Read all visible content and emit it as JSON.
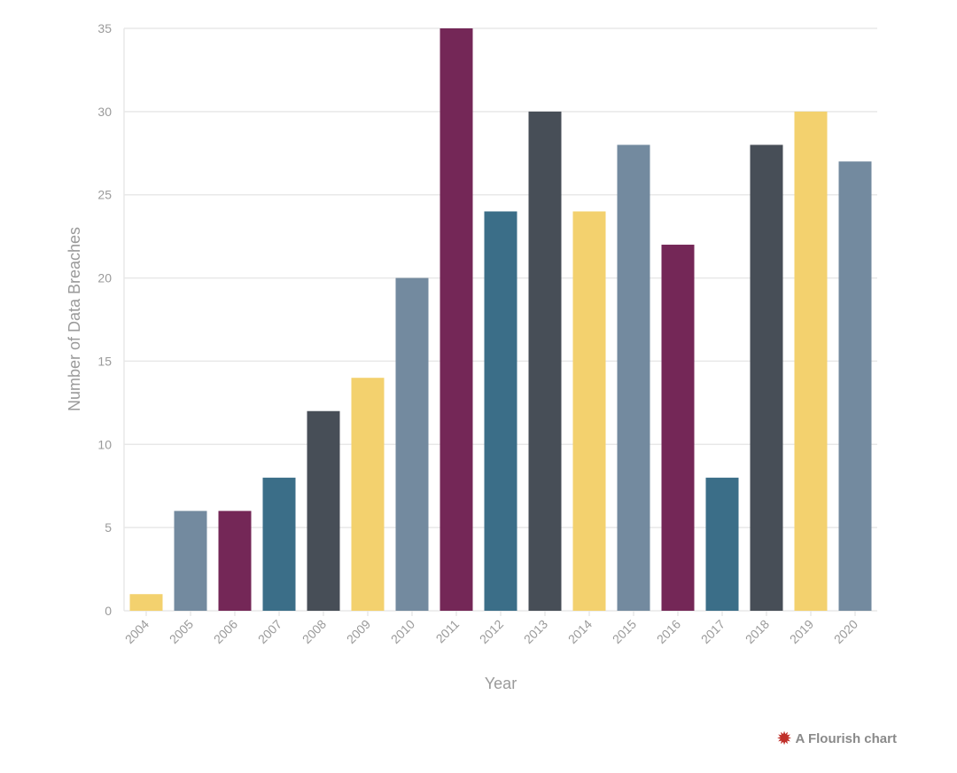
{
  "chart_data": {
    "type": "bar",
    "title": "",
    "xlabel": "Year",
    "ylabel": "Number of Data Breaches",
    "categories": [
      "2004",
      "2005",
      "2006",
      "2007",
      "2008",
      "2009",
      "2010",
      "2011",
      "2012",
      "2013",
      "2014",
      "2015",
      "2016",
      "2017",
      "2018",
      "2019",
      "2020"
    ],
    "values": [
      1,
      6,
      6,
      8,
      12,
      14,
      20,
      35,
      24,
      30,
      24,
      28,
      22,
      8,
      28,
      30,
      27
    ],
    "colors": [
      "#f3d16e",
      "#738a9f",
      "#742757",
      "#3b6e88",
      "#474e57",
      "#f3d16e",
      "#738a9f",
      "#742757",
      "#3b6e88",
      "#474e57",
      "#f3d16e",
      "#738a9f",
      "#742757",
      "#3b6e88",
      "#474e57",
      "#f3d16e",
      "#738a9f"
    ],
    "ylim": [
      0,
      35
    ],
    "yticks": [
      0,
      5,
      10,
      15,
      20,
      25,
      30,
      35
    ],
    "grid": true,
    "legend": "none"
  },
  "credit": {
    "icon": "flourish-star-icon",
    "label": "A Flourish chart"
  }
}
